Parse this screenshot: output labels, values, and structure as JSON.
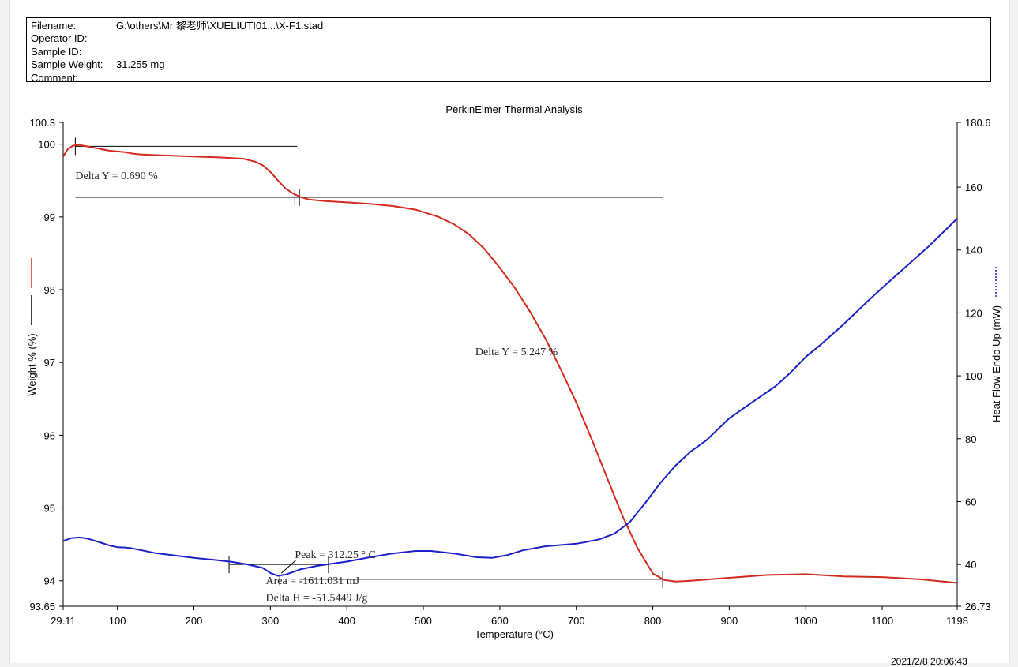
{
  "header": {
    "filename_label": "Filename:",
    "filename_value": "G:\\others\\Mr 黎老师\\XUELIUTI01...\\X-F1.stad",
    "operator_label": "Operator ID:",
    "operator_value": "",
    "sample_id_label": "Sample ID:",
    "sample_id_value": "",
    "sample_weight_label": "Sample Weight:",
    "sample_weight_value": "31.255 mg",
    "comment_label": "Comment:",
    "comment_value": ""
  },
  "footer": {
    "timestamp": "2021/2/8 20:06:43"
  },
  "chart_data": {
    "type": "line",
    "title": "PerkinElmer Thermal Analysis",
    "xlabel": "Temperature (°C)",
    "ylabel_left": "Weight % (%)",
    "ylabel_right": "Heat Flow Endo Up (mW)",
    "xlim": [
      29.11,
      1198
    ],
    "ylim_left": [
      93.65,
      100.3
    ],
    "ylim_right": [
      26.73,
      180.6
    ],
    "x_ticks": [
      "29.11",
      "100",
      "200",
      "300",
      "400",
      "500",
      "600",
      "700",
      "800",
      "900",
      "1000",
      "1100",
      "1198"
    ],
    "y_left_ticks": [
      "93.65",
      "94",
      "95",
      "96",
      "97",
      "98",
      "99",
      "100",
      "100.3"
    ],
    "y_right_ticks": [
      "26.73",
      "40",
      "60",
      "80",
      "100",
      "120",
      "140",
      "160",
      "180.6"
    ],
    "grid": false,
    "legend": "left and right axis labels",
    "series": [
      {
        "axis": "left",
        "color": "#d42a1e",
        "x": [
          29.11,
          35,
          42,
          50,
          60,
          75,
          90,
          100,
          110,
          120,
          130,
          150,
          200,
          230,
          250,
          265,
          280,
          290,
          300,
          310,
          320,
          330,
          340,
          350,
          370,
          400,
          430,
          460,
          490,
          520,
          540,
          560,
          580,
          600,
          620,
          640,
          660,
          680,
          700,
          720,
          740,
          760,
          780,
          800,
          815,
          830,
          850,
          900,
          950,
          1000,
          1050,
          1100,
          1150,
          1198
        ],
        "values": [
          99.83,
          99.93,
          99.98,
          99.99,
          99.97,
          99.94,
          99.91,
          99.9,
          99.89,
          99.87,
          99.86,
          99.85,
          99.83,
          99.82,
          99.81,
          99.8,
          99.76,
          99.71,
          99.62,
          99.5,
          99.39,
          99.32,
          99.27,
          99.24,
          99.22,
          99.2,
          99.18,
          99.15,
          99.1,
          99.0,
          98.9,
          98.76,
          98.56,
          98.3,
          98.02,
          97.69,
          97.32,
          96.9,
          96.45,
          95.95,
          95.42,
          94.9,
          94.45,
          94.1,
          94.01,
          93.99,
          94.0,
          94.04,
          94.08,
          94.09,
          94.06,
          94.05,
          94.02,
          93.97
        ]
      },
      {
        "axis": "right",
        "color": "#1a1fc8",
        "x": [
          29.11,
          40,
          50,
          60,
          70,
          80,
          90,
          100,
          110,
          120,
          150,
          200,
          230,
          250,
          270,
          290,
          300,
          310,
          320,
          340,
          360,
          380,
          400,
          430,
          460,
          490,
          510,
          540,
          570,
          590,
          610,
          630,
          660,
          690,
          700,
          710,
          730,
          750,
          770,
          790,
          810,
          830,
          850,
          870,
          900,
          930,
          960,
          980,
          1000,
          1020,
          1050,
          1080,
          1100,
          1130,
          1160,
          1198
        ],
        "values": [
          47.5,
          48.4,
          48.6,
          48.3,
          47.6,
          46.8,
          46.0,
          45.5,
          45.4,
          45.1,
          43.6,
          42.1,
          41.4,
          40.8,
          40.0,
          38.9,
          37.3,
          36.4,
          36.8,
          38.5,
          39.5,
          40.2,
          40.9,
          42.3,
          43.5,
          44.3,
          44.3,
          43.5,
          42.3,
          42.1,
          43.0,
          44.5,
          45.8,
          46.4,
          46.6,
          47.0,
          48.0,
          49.8,
          53.5,
          59.5,
          66.0,
          71.5,
          76.0,
          79.5,
          86.5,
          91.6,
          96.6,
          101.0,
          106.0,
          110.0,
          116.5,
          123.5,
          128.0,
          134.5,
          141.0,
          150.0
        ]
      }
    ],
    "annotations": [
      {
        "text": "Delta Y = 0.690 %",
        "axis": "left",
        "x": 45,
        "y": 99.52
      },
      {
        "text": "Delta Y = 5.247 %",
        "axis": "left",
        "x": 568,
        "y": 97.1
      },
      {
        "text": "Peak = 312.25 ° C",
        "axis": "right",
        "x": 332,
        "y": 42
      },
      {
        "text": "Area = -1611.031 mJ",
        "axis": "right",
        "x": 294,
        "y": 33.8
      },
      {
        "text": "Delta H = -51.5449 J/g",
        "axis": "right",
        "x": 294,
        "y": 28.4
      }
    ],
    "reference_lines": [
      {
        "axis": "left",
        "x1": 45,
        "x2": 335,
        "y": 99.97,
        "ticks_x": [
          45
        ]
      },
      {
        "axis": "left",
        "x1": 45,
        "x2": 813,
        "y": 99.27,
        "ticks_x": [
          332,
          338
        ]
      },
      {
        "axis": "left",
        "x1": 338,
        "x2": 813,
        "y": 94.02,
        "ticks_x": [
          813
        ]
      },
      {
        "axis": "right",
        "x1": 246,
        "x2": 376,
        "y": 40.0,
        "ticks_x": [
          246,
          376
        ]
      }
    ]
  }
}
